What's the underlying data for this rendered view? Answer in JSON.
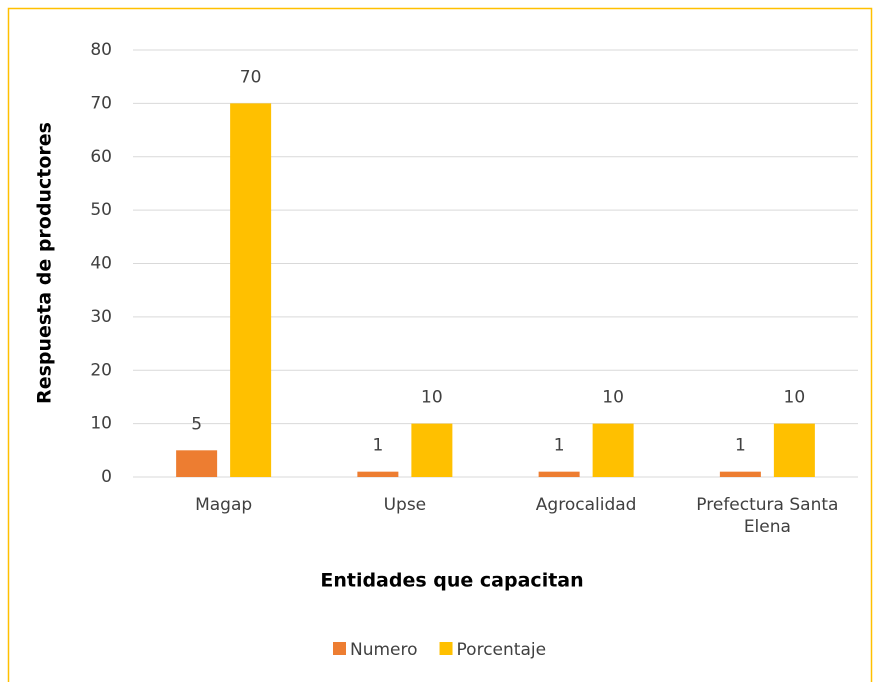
{
  "chart_data": {
    "type": "bar",
    "x_label": "Entidades que capacitan",
    "y_label": "Respuesta de productores",
    "categories": [
      "Magap",
      "Upse",
      "Agrocalidad",
      "Prefectura Santa Elena"
    ],
    "series": [
      {
        "name": "Numero",
        "color": "#ED7D31",
        "values": [
          5,
          1,
          1,
          1
        ]
      },
      {
        "name": "Porcentaje",
        "color": "#FFC000",
        "values": [
          70,
          10,
          10,
          10
        ]
      }
    ],
    "ylim": [
      0,
      80
    ],
    "yticks": [
      0,
      10,
      20,
      30,
      40,
      50,
      60,
      70,
      80
    ],
    "grid": true,
    "legend": "bottom",
    "data_labels": true
  }
}
